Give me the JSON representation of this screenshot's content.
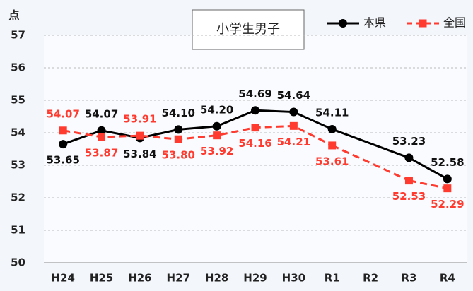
{
  "chart_data": {
    "type": "line",
    "title": "小学生男子",
    "ylabel": "点",
    "categories": [
      "H24",
      "H25",
      "H26",
      "H27",
      "H28",
      "H29",
      "H30",
      "R1",
      "R2",
      "R3",
      "R4"
    ],
    "series": [
      {
        "name": "本県",
        "color": "#000000",
        "dash": false,
        "marker": "circle",
        "values": [
          53.65,
          54.07,
          53.84,
          54.1,
          54.2,
          54.69,
          54.64,
          54.11,
          null,
          53.23,
          52.58
        ],
        "value_labels": [
          "53.65",
          "54.07",
          "53.84",
          "54.10",
          "54.20",
          "54.69",
          "54.64",
          "54.11",
          null,
          "53.23",
          "52.58"
        ]
      },
      {
        "name": "全国",
        "color": "#ff3b30",
        "dash": true,
        "marker": "square",
        "values": [
          54.07,
          53.87,
          53.91,
          53.8,
          53.92,
          54.16,
          54.21,
          53.61,
          null,
          52.53,
          52.29
        ],
        "value_labels": [
          "54.07",
          "53.87",
          "53.91",
          "53.80",
          "53.92",
          "54.16",
          "54.21",
          "53.61",
          null,
          "52.53",
          "52.29"
        ]
      }
    ],
    "ylim": [
      50,
      57
    ],
    "yticks": [
      50,
      51,
      52,
      53,
      54,
      55,
      56,
      57
    ],
    "grid": true,
    "legend": "upper right"
  }
}
